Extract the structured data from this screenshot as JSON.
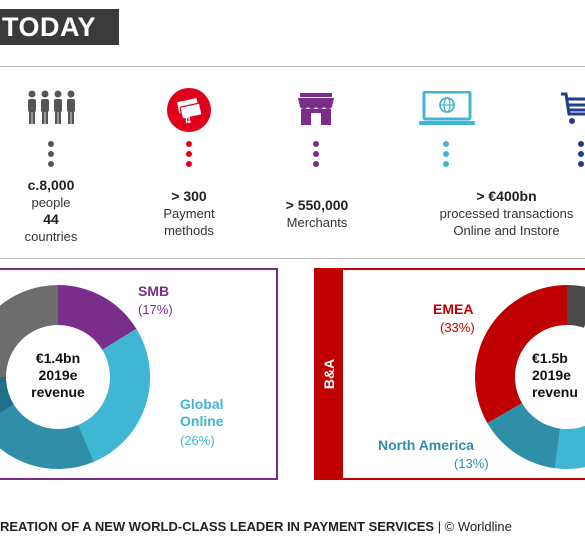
{
  "header": {
    "title": "TODAY"
  },
  "stats": [
    {
      "icon": "people-icon",
      "color": "#555555",
      "value": "c.8,000",
      "line1": "people",
      "value2": "44",
      "line2": "countries"
    },
    {
      "icon": "payment-cards-icon",
      "color": "#e0001b",
      "value": "> 300",
      "line1": "Payment",
      "line2": "methods"
    },
    {
      "icon": "storefront-icon",
      "color": "#7b2d8b",
      "value": "> 550,000",
      "line1": "Merchants"
    },
    {
      "icon": "monitor-globe-icon",
      "color": "#41b6d4",
      "value": "> €400bn",
      "line1": "processed transactions",
      "line2": "Online and Instore"
    },
    {
      "icon": "shopping-cart-icon",
      "color": "#1d3d8f"
    }
  ],
  "panel_left": {
    "border_color": "#7b2d8b",
    "center_line1": "€1.4bn",
    "center_line2": "2019e",
    "center_line3": "revenue",
    "segments": [
      {
        "label": "SMB",
        "pct": "(17%)",
        "value": 17,
        "color": "#7b2d8b"
      },
      {
        "label": "Global",
        "label2": "Online",
        "pct": "(26%)",
        "value": 26,
        "color": "#41b6d4"
      }
    ]
  },
  "panel_right": {
    "border_color": "#c00000",
    "side_label": "B&A",
    "center_line1": "€1.5b",
    "center_line2": "2019e",
    "center_line3": "revenu",
    "segments": [
      {
        "label": "EMEA",
        "pct": "(33%)",
        "value": 33,
        "color": "#c00000"
      },
      {
        "label": "North America",
        "pct": "(13%)",
        "value": 13,
        "color": "#2f8fa8"
      }
    ]
  },
  "footer": {
    "bold_text": "REATION OF A NEW WORLD-CLASS LEADER IN PAYMENT SERVICES",
    "rest_text": " | © Worldline"
  }
}
